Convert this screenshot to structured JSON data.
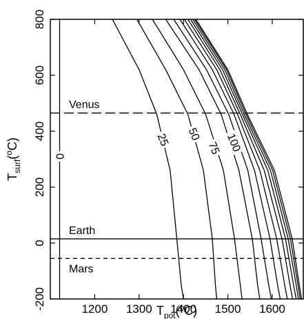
{
  "chart_data": {
    "type": "line",
    "xlabel": {
      "base": "T",
      "sub": "pot",
      "sup": "o",
      "unit_tail": "C)",
      "unit_head": "("
    },
    "ylabel": {
      "base": "T",
      "sub": "surf",
      "sup": "o",
      "unit_tail": "C)",
      "unit_head": "("
    },
    "xlim": [
      1100,
      1670
    ],
    "ylim": [
      -200,
      800
    ],
    "xticks": [
      1200,
      1300,
      1400,
      1500,
      1600
    ],
    "yticks": [
      -200,
      0,
      200,
      400,
      600,
      800
    ],
    "grid": false,
    "reference_lines": [
      {
        "label": "Venus",
        "y": 465,
        "style": "long-dash"
      },
      {
        "label": "Earth",
        "y": 15,
        "style": "solid"
      },
      {
        "label": "Mars",
        "y": -55,
        "style": "short-dash"
      }
    ],
    "series": [
      {
        "name": "0",
        "points": [
          [
            1121,
            -200
          ],
          [
            1121,
            800
          ]
        ]
      },
      {
        "name": "25",
        "points": [
          [
            1240,
            800
          ],
          [
            1300,
            620
          ],
          [
            1340,
            460
          ],
          [
            1370,
            260
          ],
          [
            1385,
            15
          ],
          [
            1395,
            -150
          ],
          [
            1400,
            -200
          ]
        ]
      },
      {
        "name": "50",
        "points": [
          [
            1295,
            800
          ],
          [
            1360,
            620
          ],
          [
            1410,
            460
          ],
          [
            1445,
            260
          ],
          [
            1465,
            15
          ],
          [
            1472,
            -150
          ],
          [
            1475,
            -200
          ]
        ]
      },
      {
        "name": "75",
        "points": [
          [
            1330,
            800
          ],
          [
            1400,
            620
          ],
          [
            1450,
            460
          ],
          [
            1490,
            260
          ],
          [
            1515,
            15
          ],
          [
            1528,
            -150
          ],
          [
            1532,
            -200
          ]
        ]
      },
      {
        "name": "100",
        "points": [
          [
            1360,
            800
          ],
          [
            1435,
            620
          ],
          [
            1485,
            460
          ],
          [
            1525,
            260
          ],
          [
            1555,
            15
          ],
          [
            1567,
            -150
          ],
          [
            1572,
            -200
          ]
        ]
      },
      {
        "name": "",
        "points": [
          [
            1378,
            800
          ],
          [
            1452,
            620
          ],
          [
            1502,
            460
          ],
          [
            1545,
            260
          ],
          [
            1575,
            15
          ],
          [
            1592,
            -150
          ],
          [
            1598,
            -200
          ]
        ]
      },
      {
        "name": "",
        "points": [
          [
            1392,
            800
          ],
          [
            1465,
            620
          ],
          [
            1514,
            460
          ],
          [
            1560,
            260
          ],
          [
            1595,
            15
          ],
          [
            1612,
            -150
          ],
          [
            1618,
            -200
          ]
        ]
      },
      {
        "name": "",
        "points": [
          [
            1402,
            800
          ],
          [
            1475,
            620
          ],
          [
            1522,
            460
          ],
          [
            1572,
            260
          ],
          [
            1610,
            15
          ],
          [
            1628,
            -150
          ],
          [
            1634,
            -200
          ]
        ]
      },
      {
        "name": "",
        "points": [
          [
            1410,
            800
          ],
          [
            1482,
            620
          ],
          [
            1528,
            460
          ],
          [
            1582,
            260
          ],
          [
            1622,
            15
          ],
          [
            1640,
            -150
          ],
          [
            1646,
            -200
          ]
        ]
      },
      {
        "name": "",
        "points": [
          [
            1416,
            800
          ],
          [
            1488,
            620
          ],
          [
            1533,
            460
          ],
          [
            1590,
            260
          ],
          [
            1630,
            15
          ],
          [
            1648,
            -150
          ],
          [
            1654,
            -200
          ]
        ]
      },
      {
        "name": "",
        "points": [
          [
            1421,
            800
          ],
          [
            1493,
            620
          ],
          [
            1537,
            460
          ],
          [
            1596,
            260
          ],
          [
            1636,
            15
          ],
          [
            1654,
            -150
          ],
          [
            1659,
            -200
          ]
        ]
      },
      {
        "name": "",
        "points": [
          [
            1425,
            800
          ],
          [
            1497,
            620
          ],
          [
            1541,
            460
          ],
          [
            1601,
            260
          ],
          [
            1641,
            15
          ],
          [
            1658,
            -150
          ],
          [
            1663,
            -200
          ]
        ]
      },
      {
        "name": "",
        "points": [
          [
            1428,
            800
          ],
          [
            1500,
            620
          ],
          [
            1544,
            460
          ],
          [
            1605,
            260
          ],
          [
            1645,
            15
          ],
          [
            1661,
            -150
          ],
          [
            1666,
            -200
          ]
        ]
      }
    ]
  }
}
